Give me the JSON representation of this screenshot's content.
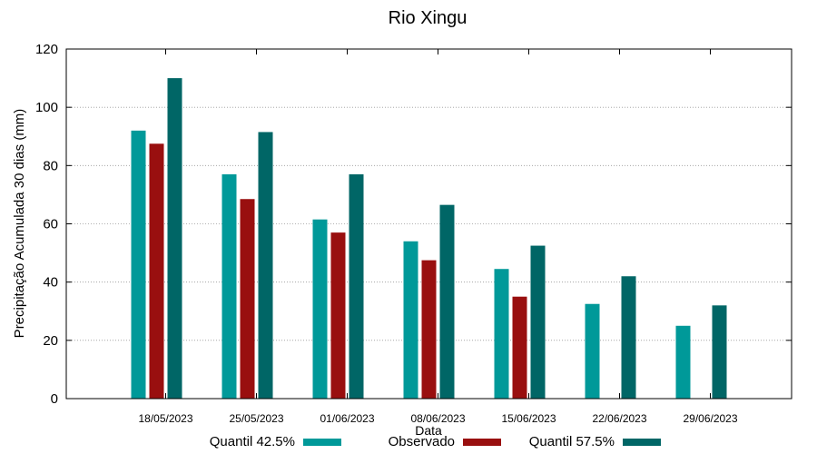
{
  "chart_data": {
    "type": "bar",
    "title": "Rio Xingu",
    "xlabel": "Data",
    "ylabel": "Precipitação Acumulada 30 dias (mm)",
    "ylim": [
      0,
      120
    ],
    "yticks": [
      0,
      20,
      40,
      60,
      80,
      100,
      120
    ],
    "grid": true,
    "legend_position": "bottom",
    "categories": [
      "18/05/2023",
      "25/05/2023",
      "01/06/2023",
      "08/06/2023",
      "15/06/2023",
      "22/06/2023",
      "29/06/2023"
    ],
    "series": [
      {
        "name": "Quantil 42.5%",
        "color": "#009999",
        "values": [
          92,
          77,
          61.5,
          54,
          44.5,
          32.5,
          25
        ]
      },
      {
        "name": "Observado",
        "color": "#990f0f",
        "values": [
          87.5,
          68.5,
          57,
          47.5,
          35,
          null,
          null
        ]
      },
      {
        "name": "Quantil 57.5%",
        "color": "#006666",
        "values": [
          110,
          91.5,
          77,
          66.5,
          52.5,
          42,
          32
        ]
      }
    ]
  }
}
